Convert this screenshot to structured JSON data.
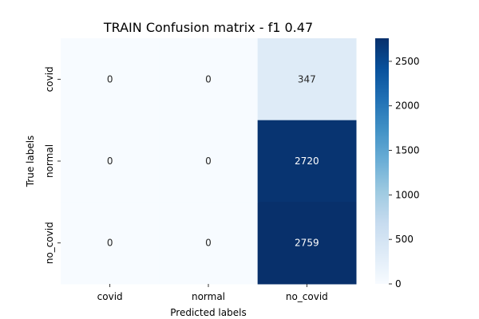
{
  "chart_data": {
    "type": "heatmap",
    "title": "TRAIN Confusion matrix - f1 0.47",
    "xlabel": "Predicted labels",
    "ylabel": "True labels",
    "x_categories": [
      "covid",
      "normal",
      "no_covid"
    ],
    "y_categories": [
      "covid",
      "normal",
      "no_covid"
    ],
    "values": [
      [
        0,
        0,
        347
      ],
      [
        0,
        0,
        2720
      ],
      [
        0,
        0,
        2759
      ]
    ],
    "colormap": "Blues",
    "colorbar": {
      "min": 0,
      "max": 2759,
      "ticks": [
        0,
        500,
        1000,
        1500,
        2000,
        2500
      ]
    }
  }
}
